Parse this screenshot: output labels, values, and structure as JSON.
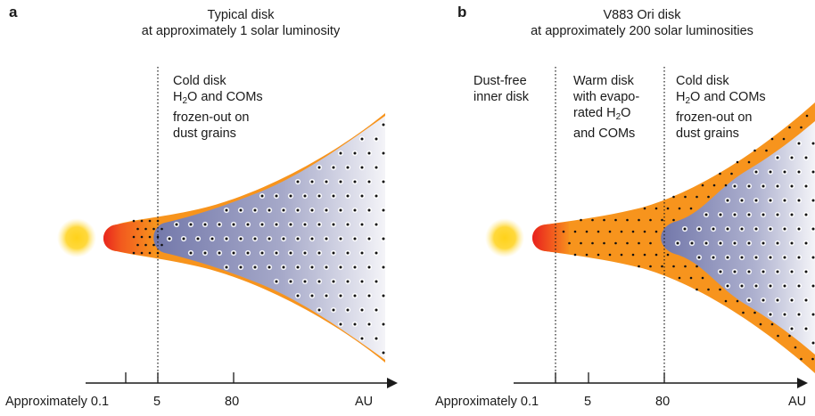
{
  "panel_a": {
    "letter": "a",
    "title_line1": "Typical disk",
    "title_line2": "at approximately 1 solar luminosity",
    "zones": [
      {
        "lines": [
          "Cold disk",
          "H2O and COMs",
          "frozen-out on",
          "dust grains"
        ]
      }
    ],
    "axis": {
      "ticks": [
        "Approximately 0.1",
        "5",
        "80"
      ],
      "unit": "AU"
    }
  },
  "panel_b": {
    "letter": "b",
    "title_line1": "V883 Ori disk",
    "title_line2": "at approximately 200 solar luminosities",
    "zones": [
      {
        "lines": [
          "Dust-free",
          "inner disk"
        ]
      },
      {
        "lines": [
          "Warm disk",
          "with evapo-",
          "rated H2O",
          "and COMs"
        ]
      },
      {
        "lines": [
          "Cold disk",
          "H2O and COMs",
          "frozen-out on",
          "dust grains"
        ]
      }
    ],
    "axis": {
      "ticks": [
        "Approximately 0.1",
        "5",
        "80"
      ],
      "unit": "AU"
    }
  },
  "colors": {
    "warm_disk": "#f7941d",
    "star_core": "#ffd21a",
    "inner_rim": "#e8231d",
    "cold_disk_inner": "#7a7fb0",
    "cold_disk_outer": "#f2f2f6"
  }
}
